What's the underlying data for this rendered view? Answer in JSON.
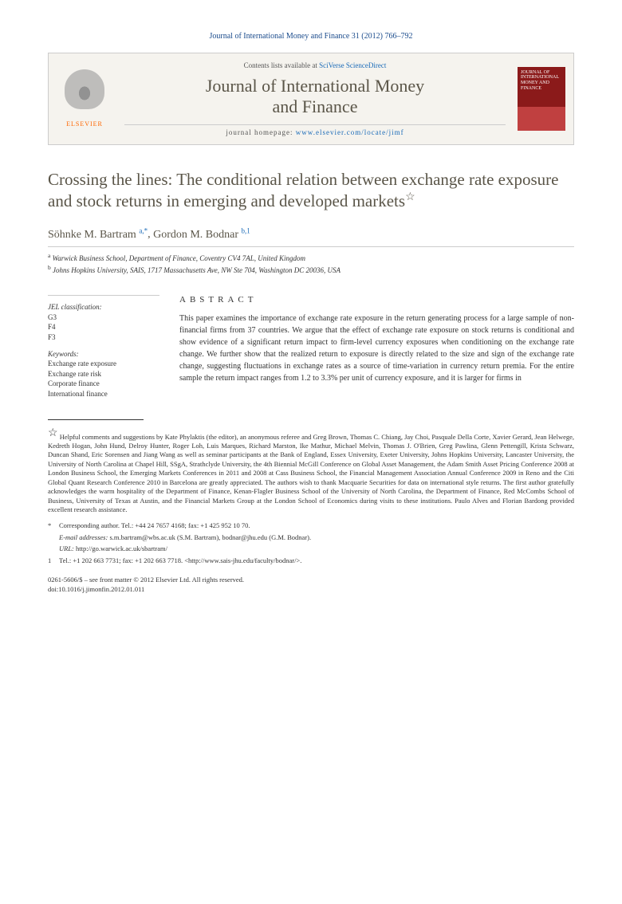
{
  "header": {
    "citation": "Journal of International Money and Finance 31 (2012) 766–792"
  },
  "journal_box": {
    "elsevier_label": "ELSEVIER",
    "contents_prefix": "Contents lists available at ",
    "contents_link": "SciVerse ScienceDirect",
    "title_line1": "Journal of International Money",
    "title_line2": "and Finance",
    "homepage_prefix": "journal homepage: ",
    "homepage_url": "www.elsevier.com/locate/jimf",
    "thumb_title": "JOURNAL OF INTERNATIONAL MONEY AND FINANCE"
  },
  "article": {
    "title": "Crossing the lines: The conditional relation between exchange rate exposure and stock returns in emerging and developed markets",
    "star": "☆"
  },
  "authors": [
    {
      "name": "Söhnke M. Bartram",
      "marks": "a,*"
    },
    {
      "name": "Gordon M. Bodnar",
      "marks": "b,1"
    }
  ],
  "affiliations": [
    {
      "mark": "a",
      "text": "Warwick Business School, Department of Finance, Coventry CV4 7AL, United Kingdom"
    },
    {
      "mark": "b",
      "text": "Johns Hopkins University, SAIS, 1717 Massachusetts Ave, NW Ste 704, Washington DC 20036, USA"
    }
  ],
  "sidebar": {
    "jel_heading": "JEL classification:",
    "jel_codes": [
      "G3",
      "F4",
      "F3"
    ],
    "keywords_heading": "Keywords:",
    "keywords": [
      "Exchange rate exposure",
      "Exchange rate risk",
      "Corporate finance",
      "International finance"
    ]
  },
  "abstract": {
    "heading": "ABSTRACT",
    "text": "This paper examines the importance of exchange rate exposure in the return generating process for a large sample of non-financial firms from 37 countries. We argue that the effect of exchange rate exposure on stock returns is conditional and show evidence of a significant return impact to firm-level currency exposures when conditioning on the exchange rate change. We further show that the realized return to exposure is directly related to the size and sign of the exchange rate change, suggesting fluctuations in exchange rates as a source of time-variation in currency return premia. For the entire sample the return impact ranges from 1.2 to 3.3% per unit of currency exposure, and it is larger for firms in"
  },
  "footnotes": {
    "ack": "Helpful comments and suggestions by Kate Phylaktis (the editor), an anonymous referee and Greg Brown, Thomas C. Chiang, Jay Choi, Pasquale Della Corte, Xavier Gerard, Jean Helwege, Kedreth Hogan, John Hund, Delroy Hunter, Roger Loh, Luis Marques, Richard Marston, Ike Mathur, Michael Melvin, Thomas J. O'Brien, Greg Pawlina, Glenn Pettengill, Krista Schwarz, Duncan Shand, Eric Sorensen and Jiang Wang as well as seminar participants at the Bank of England, Essex University, Exeter University, Johns Hopkins University, Lancaster University, the University of North Carolina at Chapel Hill, SSgA, Strathclyde University, the 4th Biennial McGill Conference on Global Asset Management, the Adam Smith Asset Pricing Conference 2008 at London Business School, the Emerging Markets Conferences in 2011 and 2008 at Cass Business School, the Financial Management Association Annual Conference 2009 in Reno and the Citi Global Quant Research Conference 2010 in Barcelona are greatly appreciated. The authors wish to thank Macquarie Securities for data on international style returns. The first author gratefully acknowledges the warm hospitality of the Department of Finance, Kenan-Flagler Business School of the University of North Carolina, the Department of Finance, Red McCombs School of Business, University of Texas at Austin, and the Financial Markets Group at the London School of Economics during visits to these institutions. Paulo Alves and Florian Bardong provided excellent research assistance.",
    "corresponding": "Corresponding author. Tel.: +44 24 7657 4168; fax: +1 425 952 10 70.",
    "emails_label": "E-mail addresses:",
    "email1": "s.m.bartram@wbs.ac.uk",
    "email1_name": "(S.M. Bartram),",
    "email2": "bodnar@jhu.edu",
    "email2_name": "(G.M. Bodnar).",
    "url_label": "URL:",
    "url": "http://go.warwick.ac.uk/sbartram/",
    "tel2": "Tel.: +1 202 663 7731; fax: +1 202 663 7718.",
    "tel2_link": "<http://www.sais-jhu.edu/faculty/bodnar/>",
    "tel2_suffix": "."
  },
  "doi": {
    "copyright": "0261-5606/$ – see front matter © 2012 Elsevier Ltd. All rights reserved.",
    "doi": "doi:10.1016/j.jimonfin.2012.01.011"
  },
  "colors": {
    "link": "#1a6bb8",
    "heading": "#5a5548",
    "elsevier_orange": "#ff6600",
    "thumb_red": "#8b1a1a"
  }
}
